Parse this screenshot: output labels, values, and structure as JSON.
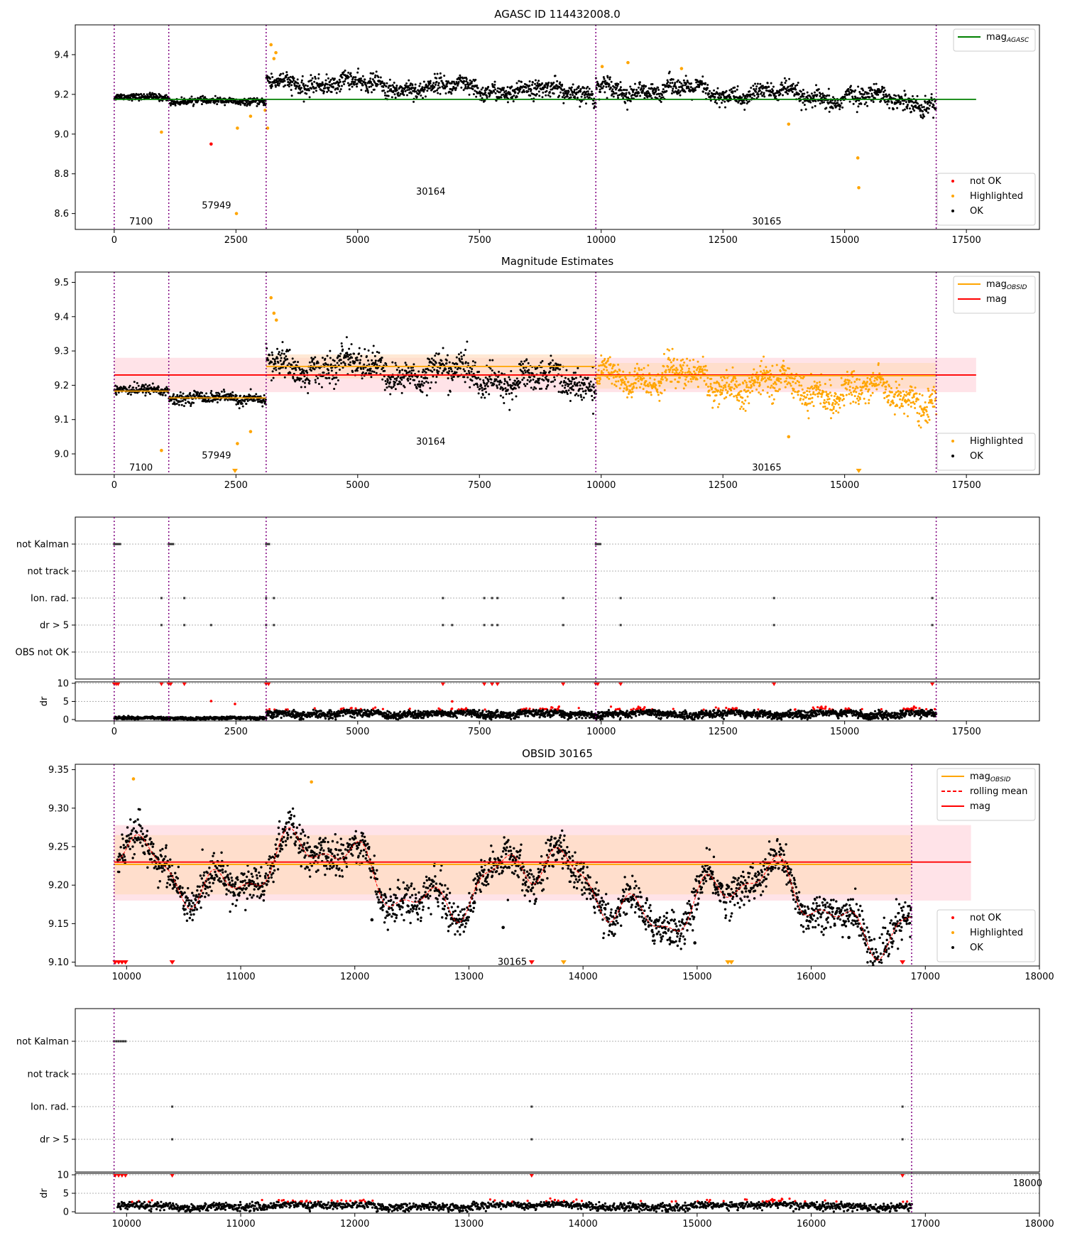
{
  "colors": {
    "ok": "#000000",
    "highlighted": "#ffa500",
    "not_ok": "#ff0000",
    "agasc_line": "#008000",
    "obs_boundary": "#800080",
    "mag_band": "#ffc0cb",
    "obsid_band": "#ffdab9"
  },
  "chart_data": [
    {
      "id": "p1",
      "type": "scatter",
      "title": "AGASC ID 114432008.0",
      "xlim": [
        -800,
        19000
      ],
      "ylim": [
        8.52,
        9.55
      ],
      "xticks": [
        "0",
        "2500",
        "5000",
        "7500",
        "10000",
        "12500",
        "15000",
        "17500"
      ],
      "yticks": [
        "8.6",
        "8.8",
        "9.0",
        "9.2",
        "9.4"
      ],
      "grid": false,
      "obs_boundaries": [
        0,
        1120,
        3120,
        9890,
        16880
      ],
      "obs_labels": [
        {
          "x": 550,
          "y": 8.56,
          "text": "7100"
        },
        {
          "x": 2100,
          "y": 8.64,
          "text": "57949"
        },
        {
          "x": 6500,
          "y": 8.71,
          "text": "30164"
        },
        {
          "x": 13400,
          "y": 8.56,
          "text": "30165"
        }
      ],
      "hlines": [
        {
          "y": 9.175,
          "x0": 0,
          "x1": 17700,
          "color": "agasc"
        }
      ],
      "segments": [
        {
          "x0": 0,
          "x1": 1120,
          "mean": 9.185,
          "sd": 0.008,
          "osc": 0.004
        },
        {
          "x0": 1120,
          "x1": 3120,
          "mean": 9.165,
          "sd": 0.008,
          "osc": 0.005
        },
        {
          "x0": 3120,
          "x1": 9890,
          "mean": 9.265,
          "sd": 0.022,
          "osc": 0.02,
          "trend": -0.06
        },
        {
          "x0": 9890,
          "x1": 16880,
          "mean": 9.235,
          "sd": 0.022,
          "osc": 0.025,
          "trend": -0.07
        }
      ],
      "highlight_rule": "early",
      "extra_points": [
        {
          "x": 970,
          "y": 9.01,
          "c": "highlighted"
        },
        {
          "x": 1990,
          "y": 8.95,
          "c": "not_ok"
        },
        {
          "x": 2510,
          "y": 8.6,
          "c": "highlighted"
        },
        {
          "x": 2530,
          "y": 9.03,
          "c": "highlighted"
        },
        {
          "x": 2800,
          "y": 9.09,
          "c": "highlighted"
        },
        {
          "x": 3100,
          "y": 9.12,
          "c": "highlighted"
        },
        {
          "x": 3150,
          "y": 9.03,
          "c": "highlighted"
        },
        {
          "x": 3220,
          "y": 9.45,
          "c": "highlighted"
        },
        {
          "x": 3280,
          "y": 9.38,
          "c": "highlighted"
        },
        {
          "x": 3320,
          "y": 9.41,
          "c": "highlighted"
        },
        {
          "x": 10020,
          "y": 9.34,
          "c": "highlighted"
        },
        {
          "x": 10550,
          "y": 9.36,
          "c": "highlighted"
        },
        {
          "x": 11650,
          "y": 9.33,
          "c": "highlighted"
        },
        {
          "x": 13850,
          "y": 9.05,
          "c": "highlighted"
        },
        {
          "x": 15270,
          "y": 8.88,
          "c": "highlighted"
        },
        {
          "x": 15290,
          "y": 8.73,
          "c": "highlighted"
        }
      ],
      "legends": [
        {
          "pos": "top-right",
          "entries": [
            {
              "label": "mag",
              "sub": "AGASC",
              "marker": "line",
              "color": "agasc_line"
            }
          ]
        },
        {
          "pos": "bottom-right",
          "entries": [
            {
              "label": "not OK",
              "marker": "dot",
              "color": "not_ok"
            },
            {
              "label": "Highlighted",
              "marker": "dot",
              "color": "highlighted"
            },
            {
              "label": "OK",
              "marker": "dot",
              "color": "ok"
            }
          ]
        }
      ]
    },
    {
      "id": "p2",
      "type": "scatter",
      "title": "Magnitude Estimates",
      "xlim": [
        -800,
        19000
      ],
      "ylim": [
        8.94,
        9.53
      ],
      "xticks": [
        "0",
        "2500",
        "5000",
        "7500",
        "10000",
        "12500",
        "15000",
        "17500"
      ],
      "yticks": [
        "9.0",
        "9.1",
        "9.2",
        "9.3",
        "9.4",
        "9.5"
      ],
      "grid": false,
      "obs_boundaries": [
        0,
        1120,
        3120,
        9890,
        16880
      ],
      "obs_labels": [
        {
          "x": 550,
          "y": 8.96,
          "text": "7100"
        },
        {
          "x": 2100,
          "y": 8.995,
          "text": "57949"
        },
        {
          "x": 6500,
          "y": 9.035,
          "text": "30164"
        },
        {
          "x": 13400,
          "y": 8.96,
          "text": "30165"
        }
      ],
      "bands": [
        {
          "x0": 0,
          "x1": 17700,
          "y0": 9.18,
          "y1": 9.28,
          "color": "mag_band"
        },
        {
          "x0": 3120,
          "x1": 9890,
          "y0": 9.22,
          "y1": 9.29,
          "color": "obsid_band"
        },
        {
          "x0": 9890,
          "x1": 16880,
          "y0": 9.19,
          "y1": 9.265,
          "color": "obsid_band"
        }
      ],
      "hlines": [
        {
          "y": 9.23,
          "x0": 0,
          "x1": 17700,
          "color": "mag"
        },
        {
          "y": 9.183,
          "x0": 0,
          "x1": 1120,
          "color": "obsid"
        },
        {
          "y": 9.163,
          "x0": 1120,
          "x1": 3120,
          "color": "obsid"
        },
        {
          "y": 9.255,
          "x0": 3120,
          "x1": 9890,
          "color": "obsid"
        },
        {
          "y": 9.228,
          "x0": 9890,
          "x1": 16880,
          "color": "obsid"
        }
      ],
      "segments": [
        {
          "x0": 0,
          "x1": 1120,
          "mean": 9.185,
          "sd": 0.008,
          "osc": 0.004
        },
        {
          "x0": 1120,
          "x1": 3120,
          "mean": 9.162,
          "sd": 0.008,
          "osc": 0.005
        },
        {
          "x0": 3120,
          "x1": 9890,
          "mean": 9.265,
          "sd": 0.022,
          "osc": 0.022,
          "trend": -0.06
        },
        {
          "x0": 9890,
          "x1": 16880,
          "mean": 9.235,
          "sd": 0.022,
          "osc": 0.025,
          "trend": -0.07,
          "all_highlighted": true
        }
      ],
      "highlight_rule": "early",
      "extra_points": [
        {
          "x": 970,
          "y": 9.01,
          "c": "highlighted"
        },
        {
          "x": 2530,
          "y": 9.03,
          "c": "highlighted"
        },
        {
          "x": 2800,
          "y": 9.065,
          "c": "highlighted"
        },
        {
          "x": 3220,
          "y": 9.455,
          "c": "highlighted"
        },
        {
          "x": 3280,
          "y": 9.41,
          "c": "highlighted"
        },
        {
          "x": 3330,
          "y": 9.39,
          "c": "highlighted"
        },
        {
          "x": 13850,
          "y": 9.05,
          "c": "highlighted"
        }
      ],
      "bottom_markers": [
        {
          "x": 2480,
          "c": "highlighted"
        },
        {
          "x": 15290,
          "c": "highlighted"
        }
      ],
      "legends": [
        {
          "pos": "top-right",
          "entries": [
            {
              "label": "mag",
              "sub": "OBSID",
              "marker": "line",
              "color": "highlighted"
            },
            {
              "label": "mag",
              "marker": "line",
              "color": "not_ok"
            }
          ]
        },
        {
          "pos": "bottom-right",
          "entries": [
            {
              "label": "Highlighted",
              "marker": "dot",
              "color": "highlighted"
            },
            {
              "label": "OK",
              "marker": "dot",
              "color": "ok"
            }
          ]
        }
      ]
    },
    {
      "id": "p3",
      "type": "scatter",
      "title": "",
      "xlim": [
        -800,
        19000
      ],
      "ylim": [
        0,
        6
      ],
      "xticks": [
        "0",
        "2500",
        "5000",
        "7500",
        "10000",
        "12500",
        "15000",
        "17500"
      ],
      "grid": false,
      "obs_boundaries": [
        0,
        1120,
        3120,
        9890,
        16880
      ],
      "flag_rows": [
        "not Kalman",
        "not track",
        "Ion. rad.",
        "dr > 5",
        "OBS not OK"
      ],
      "flag_points": {
        "not Kalman": [
          0,
          30,
          60,
          90,
          120,
          1120,
          1150,
          1180,
          1210,
          3120,
          3150,
          3180,
          9890,
          9920,
          9950,
          9980
        ],
        "not track": [],
        "Ion. rad.": [
          970,
          1440,
          3120,
          3280,
          6750,
          7600,
          7760,
          7870,
          9220,
          10400,
          13550,
          16800
        ],
        "dr > 5": [
          970,
          1440,
          1990,
          3120,
          3280,
          6750,
          6940,
          7600,
          7760,
          7870,
          9220,
          10400,
          13550,
          16800
        ],
        "OBS not OK": []
      },
      "dr_subplot": {
        "ylabel": "dr",
        "yticks": [
          "0",
          "5",
          "10"
        ],
        "ylim": [
          0,
          10
        ],
        "segments": [
          {
            "x0": 0,
            "x1": 3120,
            "mean": 0.35,
            "sd": 0.2,
            "osc": 0.1
          },
          {
            "x0": 3120,
            "x1": 16880,
            "mean": 1.6,
            "sd": 0.55,
            "osc": 0.4
          }
        ],
        "top_markers": [
          0,
          40,
          80,
          970,
          1120,
          1160,
          1440,
          3120,
          3170,
          6750,
          7600,
          7760,
          7870,
          9220,
          9890,
          9930,
          10400,
          13550,
          16800
        ],
        "extra_points": [
          {
            "x": 1990,
            "y": 5.1,
            "c": "not_ok"
          },
          {
            "x": 2480,
            "y": 4.3,
            "c": "not_ok"
          },
          {
            "x": 6940,
            "y": 5.0,
            "c": "not_ok"
          }
        ]
      }
    },
    {
      "id": "p4",
      "type": "scatter",
      "title": "OBSID 30165",
      "xlim": [
        9550,
        18000
      ],
      "ylim": [
        9.095,
        9.357
      ],
      "xticks": [
        "10000",
        "11000",
        "12000",
        "13000",
        "14000",
        "15000",
        "16000",
        "17000",
        "18000"
      ],
      "yticks": [
        "9.10",
        "9.15",
        "9.20",
        "9.25",
        "9.30",
        "9.35"
      ],
      "grid": false,
      "obs_boundaries": [
        9890,
        16880
      ],
      "obs_labels": [
        {
          "x": 13380,
          "y": 9.1,
          "text": "30165"
        }
      ],
      "bands": [
        {
          "x0": 9890,
          "x1": 17400,
          "y0": 9.18,
          "y1": 9.278,
          "color": "mag_band"
        },
        {
          "x0": 9890,
          "x1": 16880,
          "y0": 9.188,
          "y1": 9.265,
          "color": "obsid_band"
        }
      ],
      "hlines": [
        {
          "y": 9.23,
          "x0": 9890,
          "x1": 17400,
          "color": "mag"
        },
        {
          "y": 9.227,
          "x0": 9890,
          "x1": 16880,
          "color": "obsid"
        }
      ],
      "segments": [
        {
          "x0": 9920,
          "x1": 16880,
          "mean": 9.235,
          "sd": 0.012,
          "osc": 0.035,
          "trend": -0.07,
          "rolling": true
        }
      ],
      "highlight_rule": "high",
      "extra_points": [
        {
          "x": 10060,
          "y": 9.338,
          "c": "highlighted"
        },
        {
          "x": 11620,
          "y": 9.334,
          "c": "highlighted"
        },
        {
          "x": 12150,
          "y": 9.155,
          "c": "ok"
        },
        {
          "x": 13300,
          "y": 9.145,
          "c": "ok"
        },
        {
          "x": 14980,
          "y": 9.125,
          "c": "ok"
        },
        {
          "x": 16330,
          "y": 9.132,
          "c": "ok"
        }
      ],
      "bottom_markers": [
        {
          "x": 9900,
          "c": "not_ok"
        },
        {
          "x": 9930,
          "c": "not_ok"
        },
        {
          "x": 9960,
          "c": "not_ok"
        },
        {
          "x": 9990,
          "c": "not_ok"
        },
        {
          "x": 10400,
          "c": "not_ok"
        },
        {
          "x": 13550,
          "c": "not_ok"
        },
        {
          "x": 13830,
          "c": "highlighted"
        },
        {
          "x": 15270,
          "c": "highlighted"
        },
        {
          "x": 15300,
          "c": "highlighted"
        },
        {
          "x": 16800,
          "c": "not_ok"
        }
      ],
      "legends": [
        {
          "pos": "top-right",
          "entries": [
            {
              "label": "mag",
              "sub": "OBSID",
              "marker": "line",
              "color": "highlighted"
            },
            {
              "label": "rolling mean",
              "marker": "dashed",
              "color": "not_ok"
            },
            {
              "label": "mag",
              "marker": "line",
              "color": "not_ok"
            }
          ]
        },
        {
          "pos": "bottom-right",
          "entries": [
            {
              "label": "not OK",
              "marker": "dot",
              "color": "not_ok"
            },
            {
              "label": "Highlighted",
              "marker": "dot",
              "color": "highlighted"
            },
            {
              "label": "OK",
              "marker": "dot",
              "color": "ok"
            }
          ]
        }
      ]
    },
    {
      "id": "p5",
      "type": "scatter",
      "title": "",
      "xlim": [
        9550,
        18000
      ],
      "ylim": [
        0,
        6
      ],
      "xticks": [
        "10000",
        "11000",
        "12000",
        "13000",
        "14000",
        "15000",
        "16000",
        "17000",
        "18000"
      ],
      "grid": false,
      "obs_boundaries": [
        9890,
        16880
      ],
      "flag_rows": [
        "not Kalman",
        "not track",
        "Ion. rad.",
        "dr > 5"
      ],
      "flag_points": {
        "not Kalman": [
          9890,
          9910,
          9930,
          9950,
          9970,
          9990
        ],
        "not track": [],
        "Ion. rad.": [
          10400,
          13550,
          16800
        ],
        "dr > 5": [
          10400,
          13550,
          16800
        ]
      },
      "stray_text": "18000",
      "dr_subplot": {
        "ylabel": "dr",
        "yticks": [
          "0",
          "5",
          "10"
        ],
        "ylim": [
          0,
          10
        ],
        "segments": [
          {
            "x0": 9920,
            "x1": 16880,
            "mean": 1.6,
            "sd": 0.55,
            "osc": 0.4
          }
        ],
        "top_markers": [
          9900,
          9930,
          9960,
          9990,
          10400,
          13550,
          16800
        ],
        "extra_points": []
      }
    }
  ]
}
